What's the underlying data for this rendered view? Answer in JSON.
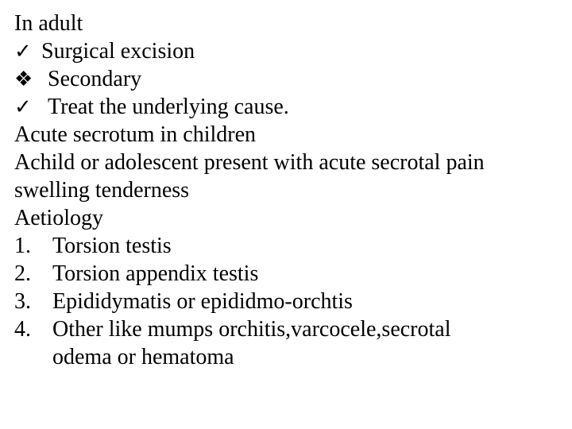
{
  "colors": {
    "text": "#000000",
    "background": "#ffffff"
  },
  "typography": {
    "family": "Times New Roman",
    "size_pt": 21
  },
  "lines": {
    "l0": "In adult",
    "b1": {
      "glyph": "✓",
      "text": "Surgical excision"
    },
    "b2": {
      "glyph": "❖",
      "text": "Secondary"
    },
    "b3": {
      "glyph": "✓",
      "text": "Treat the underlying cause."
    },
    "l4": " Acute secrotum in children",
    "l5": "Achild or adolescent present with acute secrotal pain",
    "l6": "swelling tenderness",
    "l7": "Aetiology",
    "n1": {
      "num": "1.",
      "text": "Torsion testis"
    },
    "n2": {
      "num": "2.",
      "text": "Torsion appendix testis"
    },
    "n3": {
      "num": "3.",
      "text": "Epididymatis or epididmo-orchtis"
    },
    "n4": {
      "num": "4.",
      "text": "Other like mumps orchitis,varcocele,secrotal"
    },
    "n4b": "odema or hematoma"
  }
}
